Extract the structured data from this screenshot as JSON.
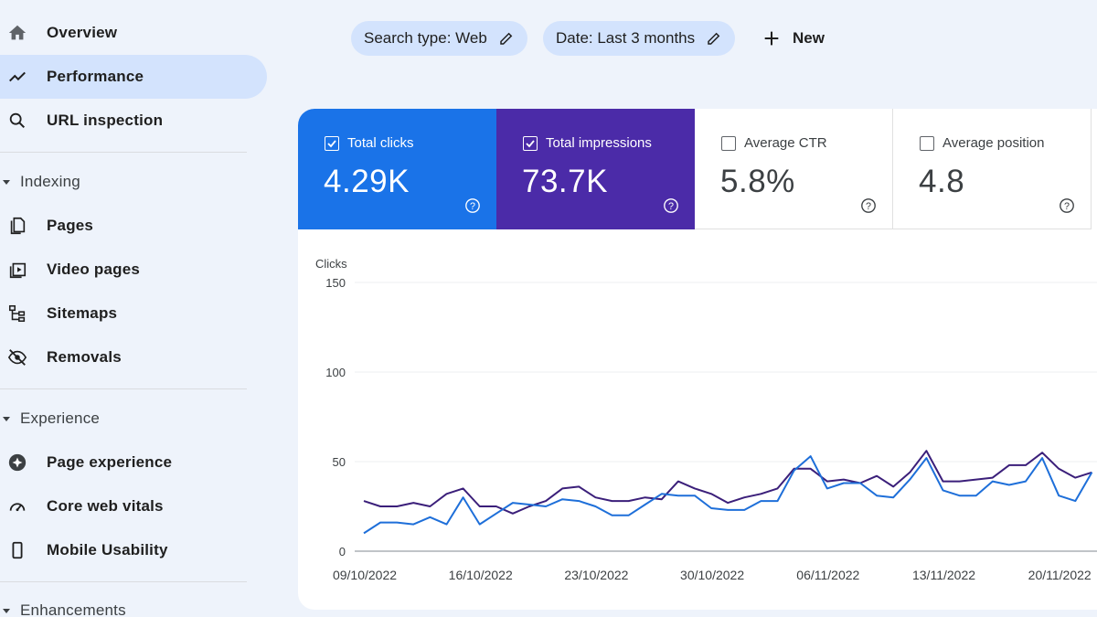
{
  "sidebar": {
    "items": [
      {
        "label": "Overview",
        "icon": "home-icon"
      },
      {
        "label": "Performance",
        "icon": "trending-up-icon",
        "active": true
      },
      {
        "label": "URL inspection",
        "icon": "search-icon"
      }
    ],
    "indexing": {
      "label": "Indexing",
      "items": [
        {
          "label": "Pages",
          "icon": "pages-icon"
        },
        {
          "label": "Video pages",
          "icon": "video-pages-icon"
        },
        {
          "label": "Sitemaps",
          "icon": "sitemap-icon"
        },
        {
          "label": "Removals",
          "icon": "eye-off-icon"
        }
      ]
    },
    "experience": {
      "label": "Experience",
      "items": [
        {
          "label": "Page experience",
          "icon": "page-experience-icon"
        },
        {
          "label": "Core web vitals",
          "icon": "gauge-icon"
        },
        {
          "label": "Mobile Usability",
          "icon": "smartphone-icon"
        }
      ]
    },
    "enhancements": {
      "label": "Enhancements"
    }
  },
  "filters": {
    "search_type": "Search type: Web",
    "date": "Date: Last 3 months",
    "new_label": "New"
  },
  "metrics": {
    "clicks": {
      "title": "Total clicks",
      "value": "4.29K",
      "checked": true
    },
    "impressions": {
      "title": "Total impressions",
      "value": "73.7K",
      "checked": true
    },
    "ctr": {
      "title": "Average CTR",
      "value": "5.8%",
      "checked": false
    },
    "position": {
      "title": "Average position",
      "value": "4.8",
      "checked": false
    }
  },
  "colors": {
    "clicks": "#1a73e8",
    "impressions": "#4b2ba8",
    "clicks_line": "#1e6fd9",
    "impressions_line": "#3b1f7a",
    "active_nav": "#d3e3fd"
  },
  "chart_data": {
    "type": "line",
    "ylabel": "Clicks",
    "ylim": [
      0,
      150
    ],
    "yticks": [
      0,
      50,
      100,
      150
    ],
    "xticks": [
      "09/10/2022",
      "16/10/2022",
      "23/10/2022",
      "30/10/2022",
      "06/11/2022",
      "13/11/2022",
      "20/11/2022"
    ],
    "grid": true,
    "series": [
      {
        "name": "Total impressions",
        "values": [
          28,
          25,
          25,
          27,
          25,
          32,
          35,
          25,
          25,
          21,
          25,
          28,
          35,
          36,
          30,
          28,
          28,
          30,
          29,
          39,
          35,
          32,
          27,
          30,
          32,
          35,
          46,
          46,
          39,
          40,
          38,
          42,
          36,
          44,
          56,
          39,
          39,
          40,
          41,
          48,
          48,
          55,
          46,
          41,
          44
        ]
      },
      {
        "name": "Total clicks",
        "values": [
          10,
          16,
          16,
          15,
          19,
          15,
          30,
          15,
          21,
          27,
          26,
          25,
          29,
          28,
          25,
          20,
          20,
          26,
          32,
          31,
          31,
          24,
          23,
          23,
          28,
          28,
          45,
          53,
          35,
          38,
          38,
          31,
          30,
          40,
          52,
          34,
          31,
          31,
          39,
          37,
          39,
          52,
          31,
          28,
          44
        ]
      }
    ]
  }
}
